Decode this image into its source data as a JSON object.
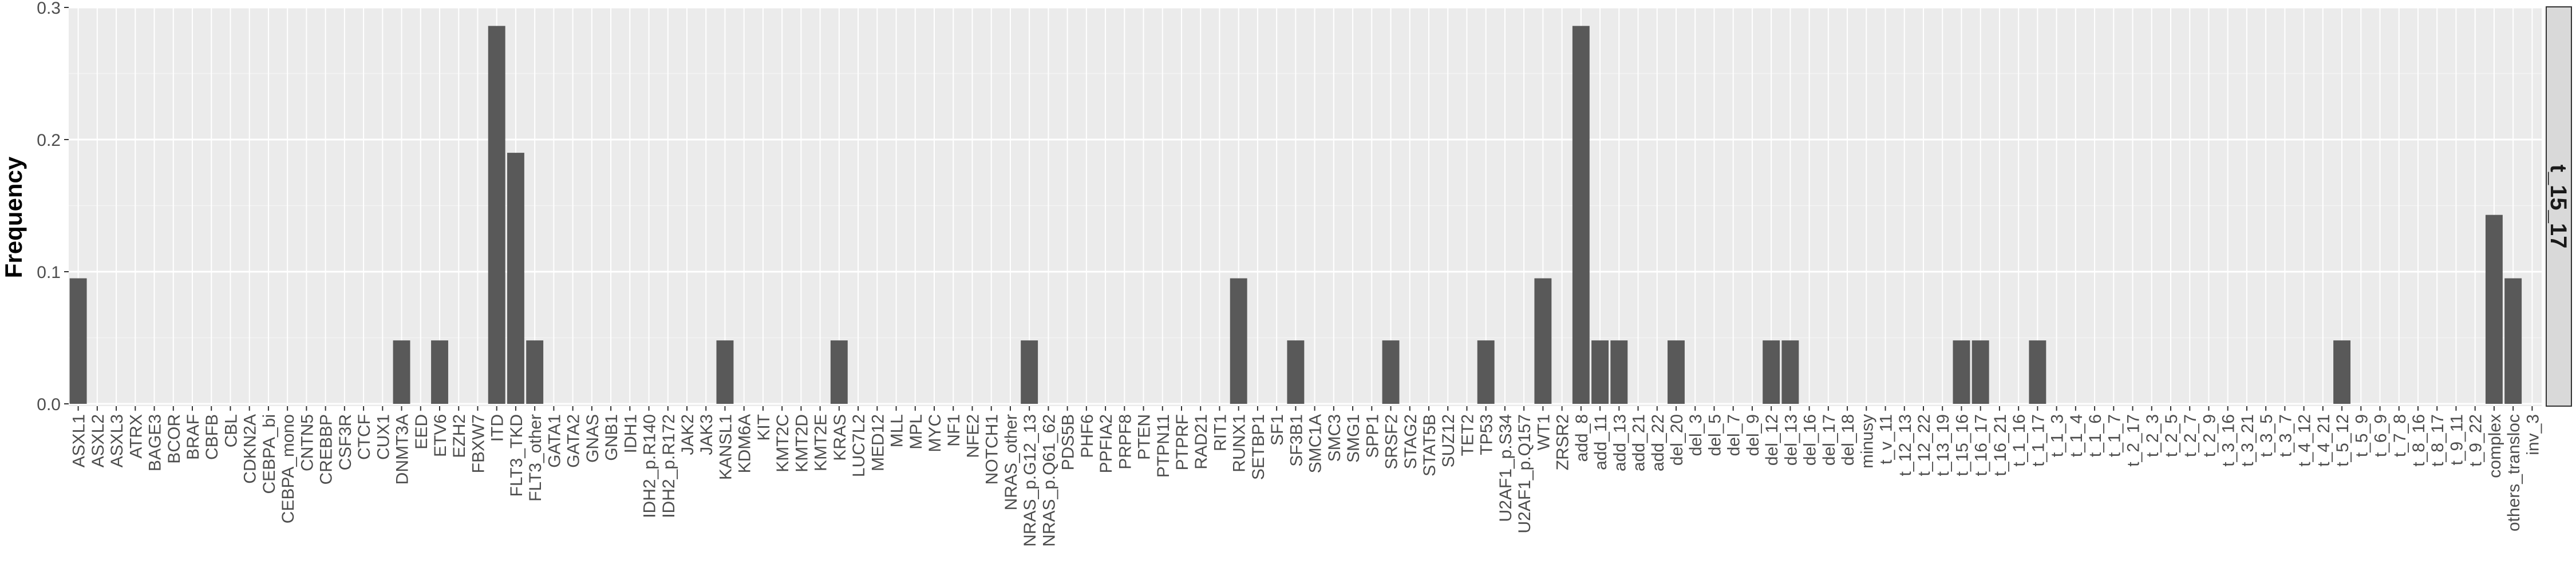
{
  "colors": {
    "panel_bg": "#ebebeb",
    "grid_major": "#ffffff",
    "grid_minor": "#f4f4f4",
    "bar": "#595959",
    "strip_bg": "#d9d9d9",
    "strip_border": "#333333",
    "tick_text": "#4d4d4d"
  },
  "chart_data": {
    "type": "bar",
    "ylabel": "Frequency",
    "ylim": [
      0,
      0.3
    ],
    "yticks": [
      0.0,
      0.1,
      0.2,
      0.3
    ],
    "ytick_labels": [
      "0.0",
      "0.1",
      "0.2",
      "0.3"
    ],
    "grid": true,
    "facet_label": "t_15_17",
    "categories": [
      "ASXL1",
      "ASXL2",
      "ASXL3",
      "ATRX",
      "BAGE3",
      "BCOR",
      "BRAF",
      "CBFB",
      "CBL",
      "CDKN2A",
      "CEBPA_bi",
      "CEBPA_mono",
      "CNTN5",
      "CREBBP",
      "CSF3R",
      "CTCF",
      "CUX1",
      "DNMT3A",
      "EED",
      "ETV6",
      "EZH2",
      "FBXW7",
      "ITD",
      "FLT3_TKD",
      "FLT3_other",
      "GATA1",
      "GATA2",
      "GNAS",
      "GNB1",
      "IDH1",
      "IDH2_p.R140",
      "IDH2_p.R172",
      "JAK2",
      "JAK3",
      "KANSL1",
      "KDM6A",
      "KIT",
      "KMT2C",
      "KMT2D",
      "KMT2E",
      "KRAS",
      "LUC7L2",
      "MED12",
      "MLL",
      "MPL",
      "MYC",
      "NF1",
      "NFE2",
      "NOTCH1",
      "NRAS_other",
      "NRAS_p.G12_13",
      "NRAS_p.Q61_62",
      "PDS5B",
      "PHF6",
      "PPFIA2",
      "PRPF8",
      "PTEN",
      "PTPN11",
      "PTPRF",
      "RAD21",
      "RIT1",
      "RUNX1",
      "SETBP1",
      "SF1",
      "SF3B1",
      "SMC1A",
      "SMC3",
      "SMG1",
      "SPP1",
      "SRSF2",
      "STAG2",
      "STAT5B",
      "SUZ12",
      "TET2",
      "TP53",
      "U2AF1_p.S34",
      "U2AF1_p.Q157",
      "WT1",
      "ZRSR2",
      "add_8",
      "add_11",
      "add_13",
      "add_21",
      "add_22",
      "del_20",
      "del_3",
      "del_5",
      "del_7",
      "del_9",
      "del_12",
      "del_13",
      "del_16",
      "del_17",
      "del_18",
      "minusy",
      "t_v_11",
      "t_12_13",
      "t_12_22",
      "t_13_19",
      "t_15_16",
      "t_16_17",
      "t_16_21",
      "t_1_16",
      "t_1_17",
      "t_1_3",
      "t_1_4",
      "t_1_6",
      "t_1_7",
      "t_2_17",
      "t_2_3",
      "t_2_5",
      "t_2_7",
      "t_2_9",
      "t_3_16",
      "t_3_21",
      "t_3_5",
      "t_3_7",
      "t_4_12",
      "t_4_21",
      "t_5_12",
      "t_5_9",
      "t_6_9",
      "t_7_8",
      "t_8_16",
      "t_8_17",
      "t_9_11",
      "t_9_22",
      "complex",
      "others_transloc",
      "inv_3"
    ],
    "values": [
      0.095,
      0,
      0,
      0,
      0,
      0,
      0,
      0,
      0,
      0,
      0,
      0,
      0,
      0,
      0,
      0,
      0,
      0.048,
      0,
      0.048,
      0,
      0,
      0.286,
      0.19,
      0.048,
      0,
      0,
      0,
      0,
      0,
      0,
      0,
      0,
      0,
      0.048,
      0,
      0,
      0,
      0,
      0,
      0.048,
      0,
      0,
      0,
      0,
      0,
      0,
      0,
      0,
      0,
      0.048,
      0,
      0,
      0,
      0,
      0,
      0,
      0,
      0,
      0,
      0,
      0.095,
      0,
      0,
      0.048,
      0,
      0,
      0,
      0,
      0.048,
      0,
      0,
      0,
      0,
      0.048,
      0,
      0,
      0.095,
      0,
      0.286,
      0.048,
      0.048,
      0,
      0,
      0.048,
      0,
      0,
      0,
      0,
      0.048,
      0.048,
      0,
      0,
      0,
      0,
      0,
      0,
      0,
      0,
      0.048,
      0.048,
      0,
      0,
      0.048,
      0,
      0,
      0,
      0,
      0,
      0,
      0,
      0,
      0,
      0,
      0,
      0,
      0,
      0,
      0,
      0.048,
      0,
      0,
      0,
      0,
      0,
      0,
      0,
      0.143,
      0.095,
      0
    ]
  }
}
